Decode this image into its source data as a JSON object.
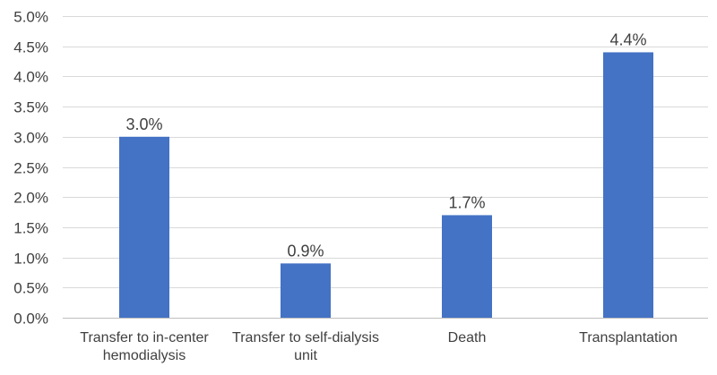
{
  "chart_data": {
    "type": "bar",
    "title": "",
    "xlabel": "",
    "ylabel": "",
    "categories": [
      [
        "Transfer to in-center",
        "hemodialysis"
      ],
      [
        "Transfer to self-dialysis",
        "unit"
      ],
      [
        "Death"
      ],
      [
        "Transplantation"
      ]
    ],
    "values": [
      3.0,
      0.9,
      1.7,
      4.4
    ],
    "data_labels": [
      "3.0%",
      "0.9%",
      "1.7%",
      "4.4%"
    ],
    "ylim": [
      0,
      5.0
    ],
    "yticks": [
      0,
      0.5,
      1.0,
      1.5,
      2.0,
      2.5,
      3.0,
      3.5,
      4.0,
      4.5,
      5.0
    ],
    "ytick_labels": [
      "0.0%",
      "0.5%",
      "1.0%",
      "1.5%",
      "2.0%",
      "2.5%",
      "3.0%",
      "3.5%",
      "4.0%",
      "4.5%",
      "5.0%"
    ],
    "grid": true,
    "legend": "none",
    "bar_color": "#4472C4",
    "grid_color": "#D9D9D9"
  }
}
